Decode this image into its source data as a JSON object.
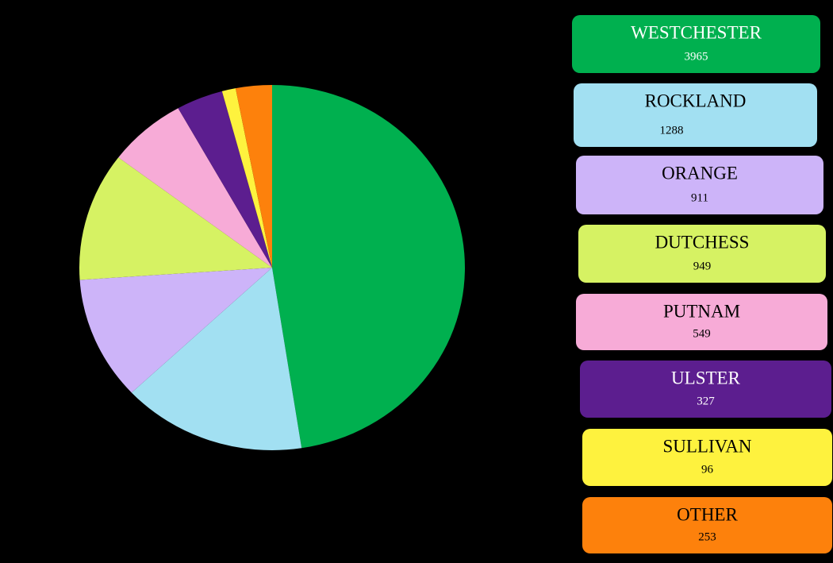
{
  "chart_data": {
    "type": "pie",
    "categories": [
      "WESTCHESTER",
      "ROCKLAND",
      "ORANGE",
      "DUTCHESS",
      "PUTNAM",
      "ULSTER",
      "SULLIVAN",
      "OTHER"
    ],
    "values": [
      3965,
      1288,
      911,
      949,
      549,
      327,
      96,
      253
    ],
    "colors": [
      "#00b04f",
      "#a2e0f2",
      "#cdb4f9",
      "#d6f263",
      "#f7abd7",
      "#5c1e8f",
      "#fef23e",
      "#fd810c"
    ]
  }
}
